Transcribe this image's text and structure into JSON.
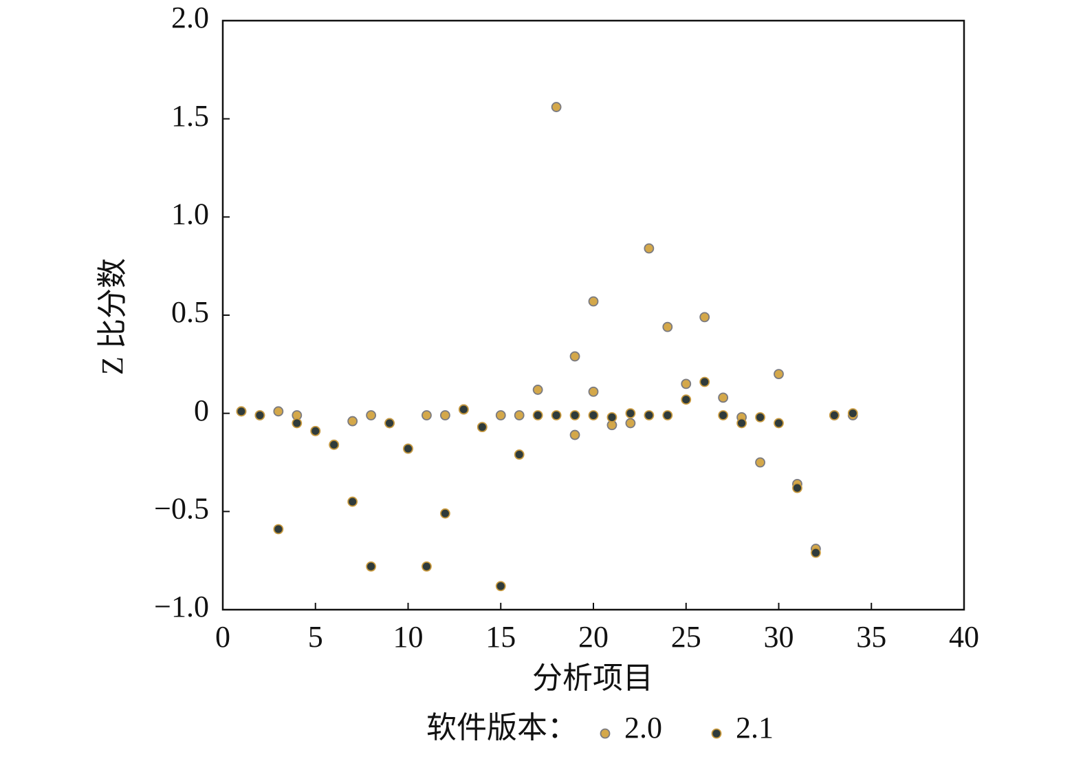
{
  "chart_data": {
    "type": "scatter",
    "xlabel": "分析项目",
    "ylabel": "Z 比分数",
    "xlim": [
      0,
      40
    ],
    "xticks": [
      0,
      5,
      10,
      15,
      20,
      25,
      30,
      35,
      40
    ],
    "ylim": [
      -1.0,
      2.0
    ],
    "yticks": [
      {
        "value": -1.0,
        "label": "−1.0"
      },
      {
        "value": -0.5,
        "label": "−0.5"
      },
      0,
      0.5,
      {
        "value": 1.0,
        "label": "1.0"
      },
      1.5,
      {
        "value": 2.0,
        "label": "2.0"
      }
    ],
    "grid": false,
    "legend_title": "软件版本：",
    "legend_position": "bottom",
    "series": [
      {
        "name": "2.0",
        "color": "#d4a84a",
        "edgecolor": "#7a7a80",
        "x": [
          1,
          2,
          3,
          4,
          5,
          6,
          7,
          8,
          9,
          10,
          11,
          12,
          13,
          14,
          15,
          16,
          17,
          18,
          19,
          19,
          20,
          20,
          21,
          22,
          23,
          24,
          25,
          26,
          27,
          28,
          29,
          30,
          31,
          32,
          33,
          34
        ],
        "values": [
          0.01,
          -0.01,
          0.01,
          -0.01,
          -0.09,
          -0.16,
          -0.04,
          -0.01,
          -0.05,
          -0.18,
          -0.01,
          -0.01,
          0.02,
          -0.07,
          -0.01,
          -0.01,
          0.12,
          1.56,
          0.29,
          -0.11,
          0.57,
          0.11,
          -0.06,
          -0.05,
          0.84,
          0.44,
          0.15,
          0.49,
          0.08,
          -0.02,
          -0.25,
          0.2,
          -0.36,
          -0.69,
          -0.01,
          -0.01
        ]
      },
      {
        "name": "2.1",
        "color": "#2f3b3b",
        "edgecolor": "#c99a3e",
        "x": [
          1,
          2,
          3,
          4,
          5,
          6,
          7,
          8,
          9,
          10,
          11,
          12,
          13,
          14,
          15,
          16,
          17,
          18,
          19,
          20,
          21,
          22,
          23,
          24,
          25,
          26,
          27,
          28,
          29,
          30,
          31,
          32,
          33,
          34
        ],
        "values": [
          0.01,
          -0.01,
          -0.59,
          -0.05,
          -0.09,
          -0.16,
          -0.45,
          -0.78,
          -0.05,
          -0.18,
          -0.78,
          -0.51,
          0.02,
          -0.07,
          -0.88,
          -0.21,
          -0.01,
          -0.01,
          -0.01,
          -0.01,
          -0.02,
          0.0,
          -0.01,
          -0.01,
          0.07,
          0.16,
          -0.01,
          -0.05,
          -0.02,
          -0.05,
          -0.38,
          -0.71,
          -0.01,
          0.0
        ]
      }
    ]
  }
}
